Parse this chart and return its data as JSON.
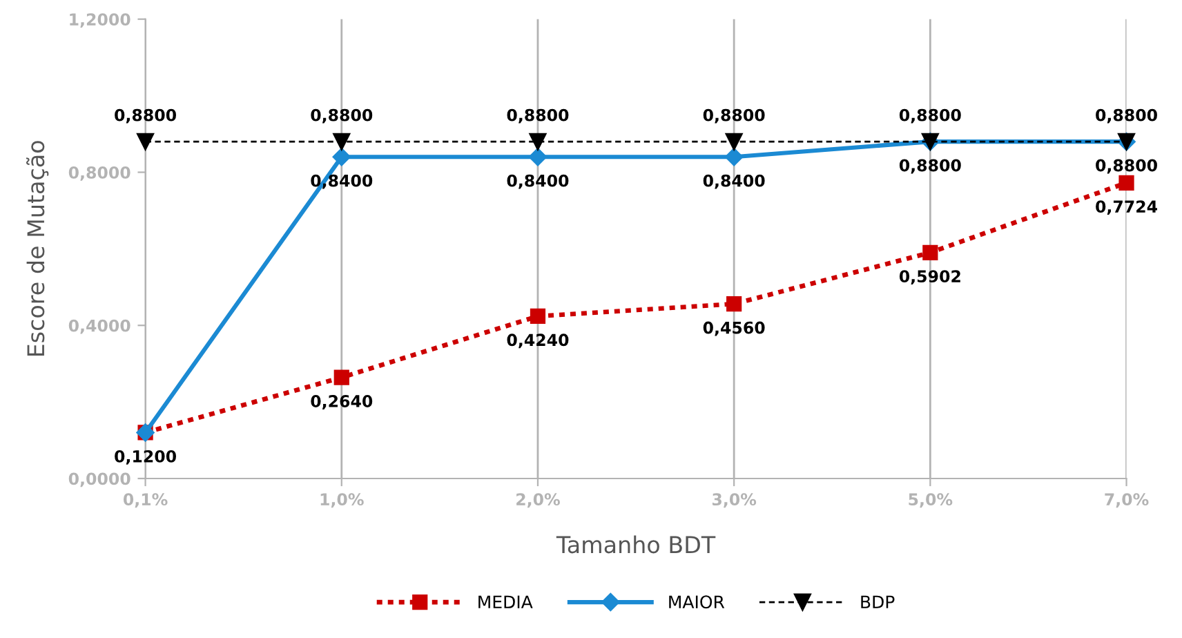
{
  "chart_data": {
    "type": "line",
    "xlabel": "Tamanho BDT",
    "ylabel": "Escore de Mutação",
    "categories": [
      "0,1%",
      "1,0%",
      "2,0%",
      "3,0%",
      "5,0%",
      "7,0%"
    ],
    "ylim": [
      0,
      1.2
    ],
    "yticks": [
      {
        "value": 0,
        "label": "0,0000"
      },
      {
        "value": 0.4,
        "label": "0,4000"
      },
      {
        "value": 0.8,
        "label": "0,8000"
      },
      {
        "value": 1.2,
        "label": "1,2000"
      }
    ],
    "grid": "x",
    "legend": "bottom",
    "series": [
      {
        "name": "MEDIA",
        "color": "#cc0000",
        "line_style": "dotted",
        "marker": "square",
        "values": [
          0.12,
          0.264,
          0.424,
          0.456,
          0.5902,
          0.7724
        ],
        "value_labels": [
          "0,1200",
          "0,2640",
          "0,4240",
          "0,4560",
          "0,5902",
          "0,7724"
        ]
      },
      {
        "name": "MAIOR",
        "color": "#1b8ad3",
        "line_style": "solid",
        "marker": "diamond",
        "values": [
          0.12,
          0.84,
          0.84,
          0.84,
          0.88,
          0.88
        ],
        "value_labels": [
          null,
          "0,8400",
          "0,8400",
          "0,8400",
          "0,8800",
          "0,8800"
        ]
      },
      {
        "name": "BDP",
        "color": "#000000",
        "line_style": "dashed",
        "marker": "triangle",
        "values": [
          0.88,
          0.88,
          0.88,
          0.88,
          0.88,
          0.88
        ],
        "value_labels": [
          "0,8800",
          "0,8800",
          "0,8800",
          "0,8800",
          "0,8800",
          "0,8800"
        ]
      }
    ]
  }
}
